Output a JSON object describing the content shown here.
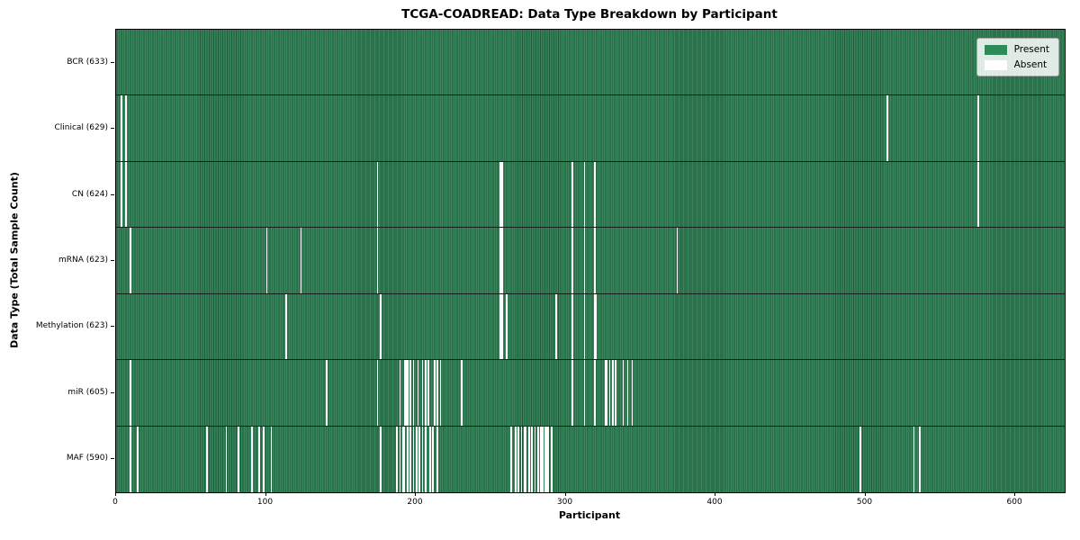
{
  "figure": {
    "title": "TCGA-COADREAD: Data Type Breakdown by Participant",
    "xlabel": "Participant",
    "ylabel": "Data Type (Total Sample Count)"
  },
  "legend": {
    "items": [
      {
        "label": "Present",
        "color": "#2e8b57"
      },
      {
        "label": "Absent",
        "color": "#ffffff"
      }
    ]
  },
  "chart_data": {
    "type": "heatmap",
    "title": "TCGA-COADREAD: Data Type Breakdown by Participant",
    "xlabel": "Participant",
    "ylabel": "Data Type (Total Sample Count)",
    "x_ticks": [
      0,
      100,
      200,
      300,
      400,
      500,
      600
    ],
    "xlim": [
      0,
      633
    ],
    "total_participants": 633,
    "grid": false,
    "legend_entries": [
      "Present",
      "Absent"
    ],
    "legend_position": "upper right",
    "colors": {
      "present_fill": "#37875d",
      "present_edge": "#20583a",
      "legend_present": "#2e8b57",
      "absent": "#ffffff"
    },
    "rows": [
      {
        "data_type": "BCR",
        "label": "BCR (633)",
        "present_count": 633,
        "absent_count": 0,
        "absent_participants": []
      },
      {
        "data_type": "Clinical",
        "label": "Clinical (629)",
        "present_count": 629,
        "absent_count": 4,
        "absent_participants": [
          3,
          6,
          514,
          575
        ]
      },
      {
        "data_type": "CN",
        "label": "CN (624)",
        "present_count": 624,
        "absent_count": 9,
        "absent_participants": [
          3,
          6,
          174,
          256,
          257,
          304,
          312,
          319,
          575
        ]
      },
      {
        "data_type": "mRNA",
        "label": "mRNA (623)",
        "present_count": 623,
        "absent_count": 10,
        "absent_participants": [
          9,
          100,
          123,
          174,
          256,
          257,
          304,
          312,
          319,
          374
        ]
      },
      {
        "data_type": "Methylation",
        "label": "Methylation (623)",
        "present_count": 623,
        "absent_count": 10,
        "absent_participants": [
          113,
          176,
          256,
          257,
          260,
          293,
          304,
          312,
          319,
          320
        ]
      },
      {
        "data_type": "miR",
        "label": "miR (605)",
        "present_count": 605,
        "absent_count": 28,
        "absent_participants": [
          9,
          140,
          174,
          189,
          192,
          193,
          194,
          196,
          198,
          201,
          204,
          206,
          208,
          212,
          214,
          216,
          230,
          304,
          312,
          319,
          326,
          327,
          329,
          331,
          333,
          338,
          341,
          344
        ]
      },
      {
        "data_type": "MAF",
        "label": "MAF (590)",
        "present_count": 590,
        "absent_count": 43,
        "absent_participants": [
          9,
          14,
          60,
          73,
          81,
          90,
          95,
          98,
          103,
          176,
          187,
          189,
          191,
          192,
          194,
          196,
          198,
          200,
          202,
          204,
          206,
          209,
          211,
          214,
          263,
          266,
          268,
          270,
          272,
          273,
          275,
          277,
          279,
          281,
          283,
          284,
          286,
          287,
          288,
          290,
          496,
          532,
          536
        ]
      }
    ]
  }
}
